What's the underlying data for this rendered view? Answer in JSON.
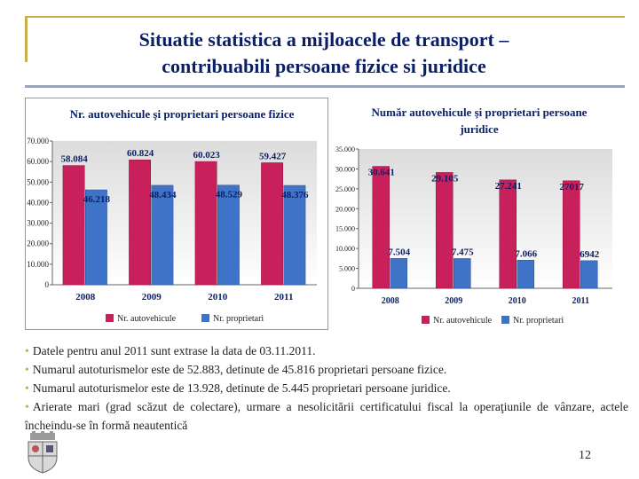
{
  "slide": {
    "title_line1": "Situatie statistica a mijloacele de transport –",
    "title_line2": "contribuabili persoane fizice si juridice",
    "page_number": "12"
  },
  "notes": [
    "Datele pentru anul 2011 sunt extrase la data de 03.11.2011.",
    "Numarul autoturismelor este de 52.883, detinute de 45.816 proprietari persoane fizice.",
    "Numarul autoturismelor este de 13.928, detinute de 5.445 proprietari persoane juridice.",
    "Arierate mari (grad scăzut de colectare), urmare a nesolicitării certificatului fiscal la operaţiunile de vânzare, actele încheindu-se în formă neautentică"
  ],
  "colors": {
    "autovehicule": "#c8205a",
    "proprietari": "#3f73c8",
    "accent": "#c9b04a",
    "title": "#0b1f66"
  },
  "chart_data": [
    {
      "type": "bar",
      "title": "Nr. autovehicule şi proprietari persoane fizice",
      "categories": [
        "2008",
        "2009",
        "2010",
        "2011"
      ],
      "series": [
        {
          "name": "Nr. autovehicule",
          "values": [
            58084,
            60824,
            60023,
            59427
          ],
          "labels": [
            "58.084",
            "60.824",
            "60.023",
            "59.427"
          ]
        },
        {
          "name": "Nr. proprietari",
          "values": [
            46218,
            48434,
            48529,
            48376
          ],
          "labels": [
            "46.218",
            "48.434",
            "48.529",
            "48.376"
          ]
        }
      ],
      "yticks": [
        0,
        10000,
        20000,
        30000,
        40000,
        50000,
        60000,
        70000
      ],
      "ytick_labels": [
        "0",
        "10.000",
        "20.000",
        "30.000",
        "40.000",
        "50.000",
        "60.000",
        "70.000"
      ],
      "ylim": [
        0,
        70000
      ],
      "legend": "bottom"
    },
    {
      "type": "bar",
      "title_line1": "Număr autovehicule şi proprietari persoane",
      "title_line2": "juridice",
      "categories": [
        "2008",
        "2009",
        "2010",
        "2011"
      ],
      "series": [
        {
          "name": "Nr. autovehicule",
          "values": [
            30641,
            29105,
            27241,
            27017
          ],
          "labels": [
            "30.641",
            "29.105",
            "27.241",
            "27017"
          ]
        },
        {
          "name": "Nr. proprietari",
          "values": [
            7504,
            7475,
            7066,
            6942
          ],
          "labels": [
            "7.504",
            "7.475",
            "7.066",
            "6942"
          ]
        }
      ],
      "yticks": [
        0,
        5000,
        10000,
        15000,
        20000,
        25000,
        30000,
        35000
      ],
      "ytick_labels": [
        "0",
        "5.000",
        "10.000",
        "15.000",
        "20.000",
        "25.000",
        "30.000",
        "35.000"
      ],
      "ylim": [
        0,
        35000
      ],
      "legend": "bottom"
    }
  ]
}
